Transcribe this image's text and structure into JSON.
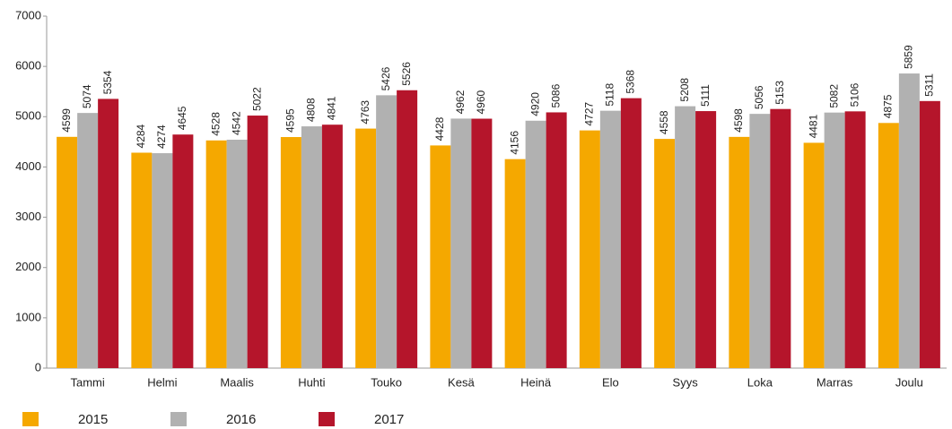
{
  "chart_data": {
    "type": "bar",
    "categories": [
      "Tammi",
      "Helmi",
      "Maalis",
      "Huhti",
      "Touko",
      "Kesä",
      "Heinä",
      "Elo",
      "Syys",
      "Loka",
      "Marras",
      "Joulu"
    ],
    "series": [
      {
        "name": "2015",
        "color": "#f5a800",
        "values": [
          4599,
          4284,
          4528,
          4595,
          4763,
          4428,
          4156,
          4727,
          4558,
          4598,
          4481,
          4875
        ]
      },
      {
        "name": "2016",
        "color": "#b1b1b1",
        "values": [
          5074,
          4274,
          4542,
          4808,
          5426,
          4962,
          4920,
          5118,
          5208,
          5056,
          5082,
          5859
        ]
      },
      {
        "name": "2017",
        "color": "#b5152b",
        "values": [
          5354,
          4645,
          5022,
          4841,
          5526,
          4960,
          5086,
          5368,
          5111,
          5153,
          5106,
          5311
        ]
      }
    ],
    "ylim": [
      0,
      7000
    ],
    "yticks": [
      0,
      1000,
      2000,
      3000,
      4000,
      5000,
      6000,
      7000
    ],
    "grid": false,
    "legend": "bottom"
  }
}
